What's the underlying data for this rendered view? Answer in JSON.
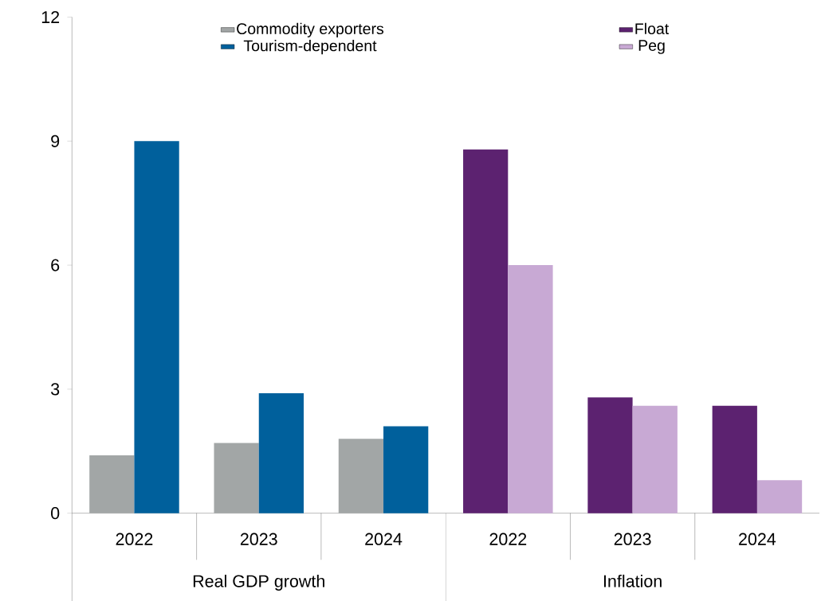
{
  "chart_data": {
    "type": "bar",
    "categories": [
      "2022",
      "2023",
      "2024",
      "2022",
      "2023",
      "2024"
    ],
    "series": [
      {
        "name": "Commodity exporters",
        "color": "#a2a6a6",
        "values": [
          1.4,
          1.7,
          1.8,
          null,
          null,
          null
        ]
      },
      {
        "name": "Tourism-dependent",
        "color": "#00609c",
        "values": [
          9.0,
          2.9,
          2.1,
          null,
          null,
          null
        ]
      },
      {
        "name": "Float",
        "color": "#5c2270",
        "values": [
          null,
          null,
          null,
          8.8,
          2.8,
          2.6
        ]
      },
      {
        "name": "Peg",
        "color": "#c8a9d4",
        "values": [
          null,
          null,
          null,
          6.0,
          2.6,
          0.8
        ]
      }
    ],
    "annotations": [
      "Real GDP growth",
      "Inflation"
    ],
    "ylim": [
      0,
      12
    ],
    "yticks": [
      0,
      3,
      6,
      9,
      12
    ],
    "legend": "top",
    "grid": false
  }
}
